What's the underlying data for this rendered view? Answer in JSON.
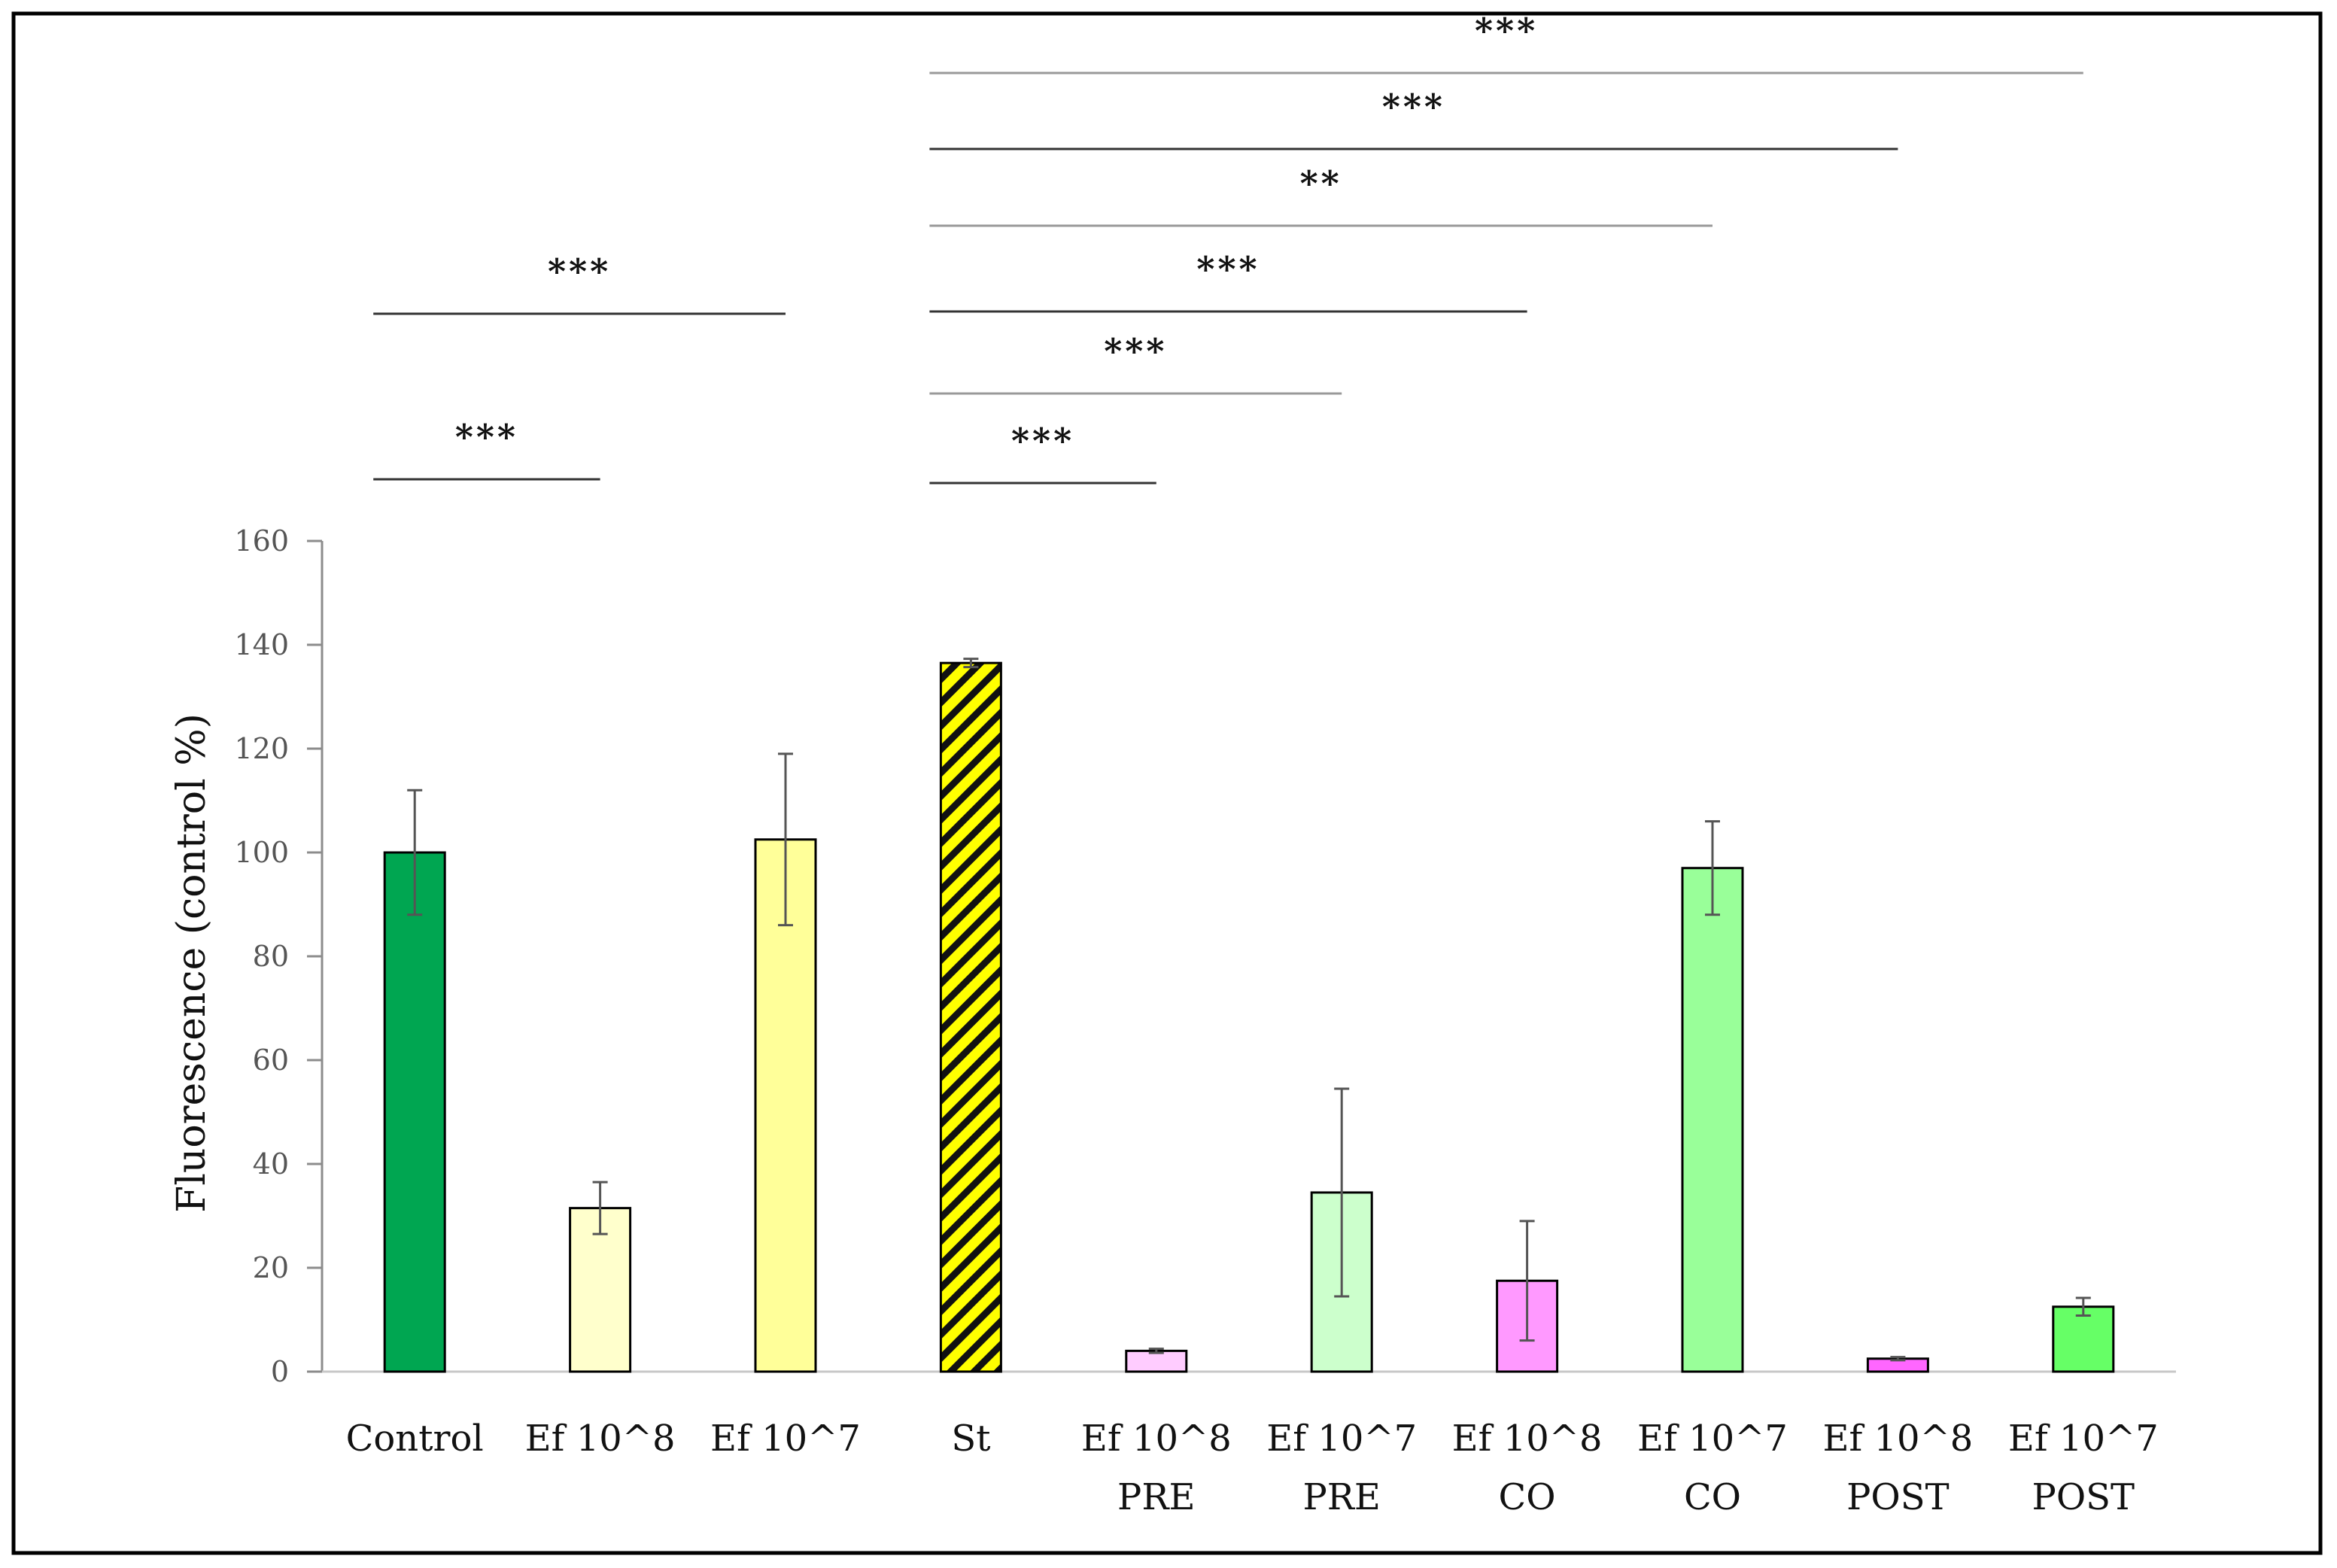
{
  "chart_data": {
    "type": "bar",
    "title": "",
    "xlabel": "",
    "ylabel": "Fluorescence (control %)",
    "ylim": [
      0,
      160
    ],
    "yticks": [
      0,
      20,
      40,
      60,
      80,
      100,
      120,
      140,
      160
    ],
    "grid": false,
    "categories": [
      [
        "Control"
      ],
      [
        "Ef 10^8"
      ],
      [
        "Ef 10^7"
      ],
      [
        "St"
      ],
      [
        "Ef 10^8",
        "PRE"
      ],
      [
        "Ef 10^7",
        "PRE"
      ],
      [
        "Ef 10^8",
        "CO"
      ],
      [
        "Ef 10^7",
        "CO"
      ],
      [
        "Ef 10^8",
        "POST"
      ],
      [
        "Ef 10^7",
        "POST"
      ]
    ],
    "values": [
      100,
      31.5,
      102.5,
      136.5,
      4,
      34.5,
      17.5,
      97,
      2.5,
      12.5
    ],
    "errors": [
      12,
      5,
      16.5,
      0.8,
      0.4,
      20,
      11.5,
      9,
      0.3,
      1.7
    ],
    "colors": [
      "#00a651",
      "#ffffcc",
      "#ffff99",
      "#ffff00",
      "#ffccff",
      "#ccffcc",
      "#ff99ff",
      "#99ff99",
      "#ff66ff",
      "#66ff66"
    ],
    "hatched": [
      false,
      false,
      false,
      true,
      false,
      false,
      false,
      false,
      false,
      false
    ],
    "significance": [
      {
        "from": 0,
        "to": 1,
        "label": "***"
      },
      {
        "from": 0,
        "to": 2,
        "label": "***"
      },
      {
        "from": 3,
        "to": 4,
        "label": "***"
      },
      {
        "from": 3,
        "to": 5,
        "label": "***"
      },
      {
        "from": 3,
        "to": 6,
        "label": "***"
      },
      {
        "from": 3,
        "to": 7,
        "label": "**"
      },
      {
        "from": 3,
        "to": 8,
        "label": "***"
      },
      {
        "from": 3,
        "to": 9,
        "label": "***"
      }
    ]
  }
}
